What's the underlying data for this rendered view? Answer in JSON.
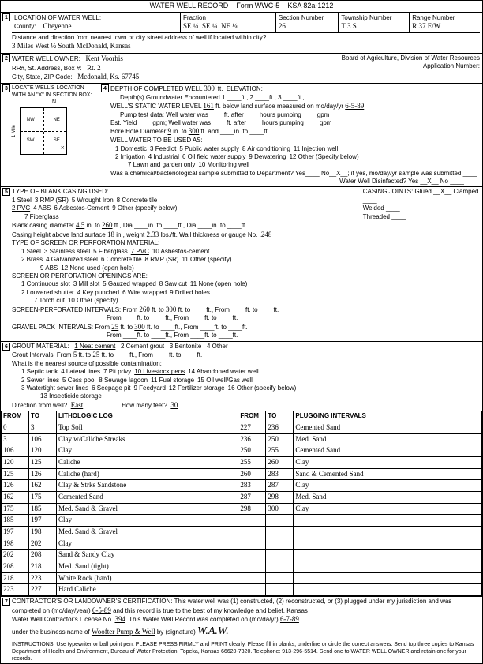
{
  "form": {
    "title": "WATER WELL RECORD",
    "form_no": "Form WWC-5",
    "ksa": "KSA 82a-1212"
  },
  "loc": {
    "label": "LOCATION OF WATER WELL:",
    "county_label": "County:",
    "county": "Cheyenne",
    "fraction_label": "Fraction",
    "fractions": [
      "SE ¼",
      "SE ¼",
      "NE ¼"
    ],
    "section_label": "Section Number",
    "section": "26",
    "township_label": "Township Number",
    "township": "T 3 S",
    "range_label": "Range Number",
    "range": "R 37 E/W",
    "distance_label": "Distance and direction from nearest town or city street address of well if located within city?",
    "distance": "3 Miles West ½ South McDonald, Kansas"
  },
  "owner": {
    "label": "WATER WELL OWNER:",
    "name": "Kent Voorhis",
    "rr_label": "RR#, St. Address, Box #:",
    "rr": "Rt. 2",
    "city_label": "City, State, ZIP Code:",
    "city": "Mcdonald, Ks. 67745",
    "board": "Board of Agriculture, Division of Water Resources",
    "app_no": "Application Number:"
  },
  "sec3": {
    "label": "LOCATE WELL'S LOCATION WITH AN \"X\" IN SECTION BOX:",
    "quads": [
      "NW",
      "NE",
      "SW",
      "SE"
    ],
    "north": "N",
    "mile": "1 Mile"
  },
  "sec4": {
    "depth_label": "DEPTH OF COMPLETED WELL",
    "depth": "300'",
    "depth_unit": "ft.",
    "elev": "ELEVATION:",
    "gw_enc": "Depth(s) Groundwater Encountered 1.____ft., 2.____ft., 3.____ft.,",
    "swl_label": "WELL'S STATIC WATER LEVEL",
    "swl": "161",
    "swl_unit": "ft. below land surface measured on mo/day/yr",
    "swl_date": "6-5-89",
    "pump_test": "Pump test data: Well water was ____ft. after ____hours pumping ____gpm",
    "est_yield": "Est. Yield ____gpm; Well water was ____ft. after ____hours pumping ____gpm",
    "bore_label": "Bore Hole Diameter",
    "bore_dia": "9",
    "bore_in": "in. to",
    "bore_depth": "300",
    "bore_ft": "ft. and ____in. to ____ft.",
    "use_label": "WELL WATER TO BE USED AS:",
    "uses": [
      "1 Domestic",
      "2 Irrigation",
      "3 Feedlot",
      "4 Industrial",
      "5 Public water supply",
      "6 Oil field water supply",
      "7 Lawn and garden only",
      "8 Air conditioning",
      "9 Dewatering",
      "10 Monitoring well",
      "11 Injection well",
      "12 Other (Specify below)"
    ],
    "chem": "Was a chemical/bacteriological sample submitted to Department? Yes____ No__X__; if yes, mo/day/yr sample was submitted ____",
    "disinfected": "Water Well Disinfected? Yes __X__ No ____"
  },
  "sec5": {
    "label": "TYPE OF BLANK CASING USED:",
    "casings": [
      "1 Steel",
      "2 PVC",
      "3 RMP (SR)",
      "4 ABS",
      "5 Wrought Iron",
      "6 Asbestos-Cement",
      "7 Fiberglass",
      "8 Concrete tile",
      "9 Other (specify below)"
    ],
    "joints_label": "CASING JOINTS: Glued __X__ Clamped ____",
    "welded": "Welded ____",
    "threaded": "Threaded ____",
    "casing_dia_label": "Blank casing diameter",
    "casing_dia": "4.5",
    "casing_to": "in. to",
    "casing_to_v": "260",
    "casing_ft": "ft., Dia ____in. to ____ft., Dia ____in. to ____ft.",
    "height_label": "Casing height above land surface",
    "height": "18",
    "weight_label": "in., weight",
    "weight": "2.33",
    "wall": "lbs./ft. Wall thickness or gauge No.",
    "wall_v": ".248",
    "screen_label": "TYPE OF SCREEN OR PERFORATION MATERIAL:",
    "screens": [
      "1 Steel",
      "2 Brass",
      "3 Stainless steel",
      "4 Galvanized steel",
      "5 Fiberglass",
      "6 Concrete tile",
      "7 PVC",
      "8 RMP (SR)",
      "9 ABS",
      "10 Asbestos-cement",
      "11 Other (specify)",
      "12 None used (open hole)"
    ],
    "openings_label": "SCREEN OR PERFORATION OPENINGS ARE:",
    "openings": [
      "1 Continuous slot",
      "2 Louvered shutter",
      "3 Mill slot",
      "4 Key punched",
      "5 Gauzed wrapped",
      "6 Wire wrapped",
      "7 Torch cut",
      "8 Saw cut",
      "9 Drilled holes",
      "10 Other (specify)",
      "11 None (open hole)"
    ],
    "perf_label": "SCREEN-PERFORATED INTERVALS:",
    "perf_from": "260",
    "perf_to": "300",
    "perf_rest": "ft. to ____ft., From ____ft. to ____ft.",
    "gravel_label": "GRAVEL PACK INTERVALS:",
    "gravel_from": "25",
    "gravel_to": "300",
    "gravel_rest": "ft. to ____ft., From ____ft. to ____ft."
  },
  "sec6": {
    "grout_label": "GROUT MATERIAL:",
    "grouts": [
      "1 Neat cement",
      "2 Cement grout",
      "3 Bentonite",
      "4 Other"
    ],
    "grout_int": "Grout Intervals: From",
    "grout_from": "5",
    "grout_to": "25",
    "grout_ft": "ft. to ____ft., From ____ft. to ____ft.",
    "contam_label": "What is the nearest source of possible contamination:",
    "contams": [
      "1 Septic tank",
      "2 Sewer lines",
      "3 Watertight sewer lines",
      "4 Lateral lines",
      "5 Cess pool",
      "6 Seepage pit",
      "7 Pit privy",
      "8 Sewage lagoon",
      "9 Feedyard",
      "10 Livestock pens",
      "11 Fuel storage",
      "12 Fertilizer storage",
      "13 Insecticide storage",
      "14 Abandoned water well",
      "15 Oil well/Gas well",
      "16 Other (specify below)"
    ],
    "dir_label": "Direction from well?",
    "dir": "East",
    "dist_label": "How many feet?",
    "dist": "30"
  },
  "log": {
    "headers": [
      "FROM",
      "TO",
      "LITHOLOGIC LOG",
      "FROM",
      "TO",
      "PLUGGING INTERVALS"
    ],
    "rows": [
      [
        "0",
        "3",
        "Top Soil",
        "227",
        "236",
        "Cemented Sand"
      ],
      [
        "3",
        "106",
        "Clay w/Caliche Streaks",
        "236",
        "250",
        "Med. Sand"
      ],
      [
        "106",
        "120",
        "Clay",
        "250",
        "255",
        "Cemented Sand"
      ],
      [
        "120",
        "125",
        "Caliche",
        "255",
        "260",
        "Clay"
      ],
      [
        "125",
        "126",
        "Caliche (hard)",
        "260",
        "283",
        "Sand & Cemented Sand"
      ],
      [
        "126",
        "162",
        "Clay & Strks Sandstone",
        "283",
        "287",
        "Clay"
      ],
      [
        "162",
        "175",
        "Cemented Sand",
        "287",
        "298",
        "Med. Sand"
      ],
      [
        "175",
        "185",
        "Med. Sand & Gravel",
        "298",
        "300",
        "Clay"
      ],
      [
        "185",
        "197",
        "Clay",
        "",
        "",
        ""
      ],
      [
        "197",
        "198",
        "Med. Sand & Gravel",
        "",
        "",
        ""
      ],
      [
        "198",
        "202",
        "Clay",
        "",
        "",
        ""
      ],
      [
        "202",
        "208",
        "Sand & Sandy Clay",
        "",
        "",
        ""
      ],
      [
        "208",
        "218",
        "Med. Sand (tight)",
        "",
        "",
        ""
      ],
      [
        "218",
        "223",
        "White Rock (hard)",
        "",
        "",
        ""
      ],
      [
        "223",
        "227",
        "Hard Caliche",
        "",
        "",
        ""
      ]
    ]
  },
  "sec7": {
    "cert": "CONTRACTOR'S OR LANDOWNER'S CERTIFICATION: This water well was (1) constructed, (2) reconstructed, or (3) plugged under my jurisdiction and was completed on (mo/day/year)",
    "date": "6-5-89",
    "cert2": "and this record is true to the best of my knowledge and belief. Kansas",
    "license_label": "Water Well Contractor's License No.",
    "license": "394",
    "completed": "This Water Well Record was completed on (mo/da/yr)",
    "completed_date": "6-7-89",
    "business_label": "under the business name of",
    "business": "Woofter Pump & Well",
    "sig": "by (signature)",
    "instructions": "INSTRUCTIONS: Use typewriter or ball point pen. PLEASE PRESS FIRMLY and PRINT clearly. Please fill in blanks, underline or circle the correct answers. Send top three copies to Kansas Department of Health and Environment, Bureau of Water Protection, Topeka, Kansas 66620-7320. Telephone: 913-296-5514. Send one to WATER WELL OWNER and retain one for your records."
  }
}
